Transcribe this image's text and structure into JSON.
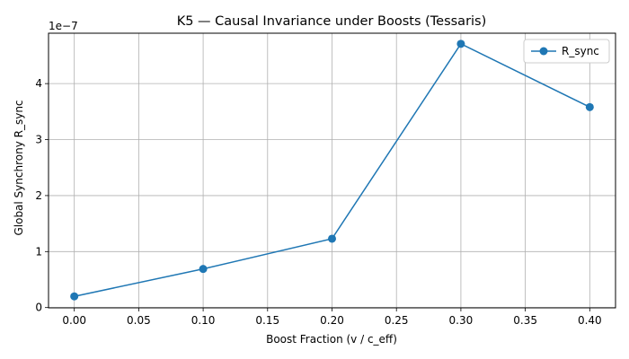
{
  "chart_data": {
    "type": "line",
    "title": "K5 — Causal Invariance under Boosts (Tessaris)",
    "xlabel": "Boost Fraction (v / c_eff)",
    "ylabel": "Global Synchrony R_sync",
    "y_offset_label": "1e−7",
    "x": [
      0.0,
      0.1,
      0.2,
      0.3,
      0.4
    ],
    "series": [
      {
        "name": "R_sync",
        "values": [
          2e-08,
          6.9e-08,
          1.23e-07,
          4.71e-07,
          3.58e-07
        ],
        "color": "#1f77b4",
        "marker": "circle"
      }
    ],
    "xlim": [
      -0.02,
      0.42
    ],
    "ylim": [
      -5e-10,
      4.9e-07
    ],
    "x_ticks": [
      0.0,
      0.05,
      0.1,
      0.15,
      0.2,
      0.25,
      0.3,
      0.35,
      0.4
    ],
    "x_tick_labels": [
      "0.00",
      "0.05",
      "0.10",
      "0.15",
      "0.20",
      "0.25",
      "0.30",
      "0.35",
      "0.40"
    ],
    "y_ticks": [
      0,
      1e-07,
      2e-07,
      3e-07,
      4e-07
    ],
    "y_tick_labels": [
      "0",
      "1",
      "2",
      "3",
      "4"
    ],
    "grid": true,
    "legend_position": "top-right"
  }
}
